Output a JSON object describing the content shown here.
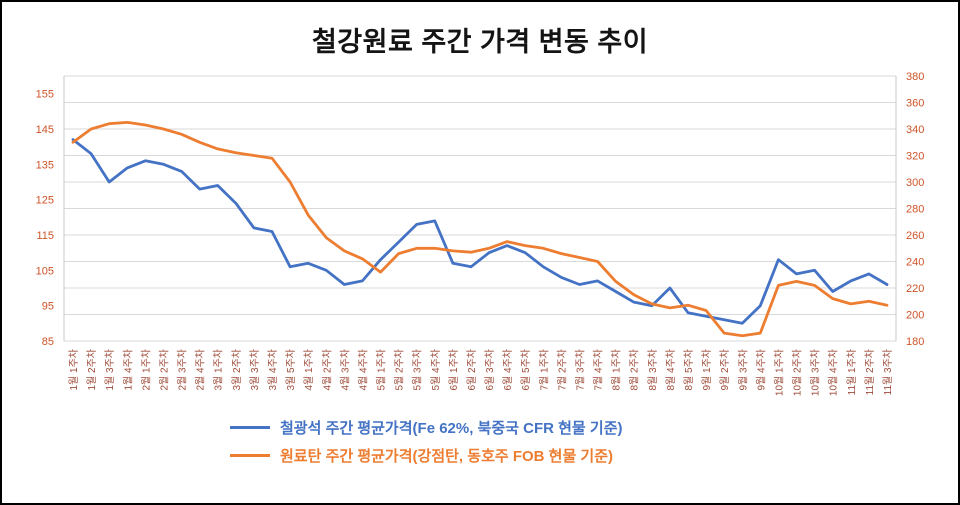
{
  "chart_data": {
    "type": "line",
    "title": "철강원료 주간 가격 변동 추이",
    "categories": [
      "1월 1주차",
      "1월 2주차",
      "1월 3주차",
      "1월 4주차",
      "2월 1주차",
      "2월 2주차",
      "2월 3주차",
      "2월 4주차",
      "3월 1주차",
      "3월 2주차",
      "3월 3주차",
      "3월 4주차",
      "3월 5주차",
      "4월 1주차",
      "4월 2주차",
      "4월 3주차",
      "4월 4주차",
      "5월 1주차",
      "5월 2주차",
      "5월 3주차",
      "5월 4주차",
      "6월 1주차",
      "6월 2주차",
      "6월 3주차",
      "6월 4주차",
      "6월 5주차",
      "7월 1주차",
      "7월 2주차",
      "7월 3주차",
      "7월 4주차",
      "8월 1주차",
      "8월 2주차",
      "8월 3주차",
      "8월 4주차",
      "8월 5주차",
      "9월 1주차",
      "9월 2주차",
      "9월 3주차",
      "9월 4주차",
      "10월 1주차",
      "10월 2주차",
      "10월 3주차",
      "10월 4주차",
      "11월 1주차",
      "11월 2주차",
      "11월 3주차"
    ],
    "series": [
      {
        "key": "iron-ore",
        "name": "철광석 주간 평균가격(Fe 62%, 북중국 CFR 현물 기준)",
        "axis": "left",
        "color": "#4472c4",
        "values": [
          142,
          138,
          130,
          134,
          136,
          135,
          133,
          128,
          129,
          124,
          117,
          116,
          106,
          107,
          105,
          101,
          102,
          108,
          113,
          118,
          119,
          107,
          106,
          110,
          112,
          110,
          106,
          103,
          101,
          102,
          99,
          96,
          95,
          100,
          93,
          92,
          91,
          90,
          95,
          108,
          104,
          105,
          99,
          102,
          104,
          101
        ]
      },
      {
        "key": "coking-coal",
        "name": "원료탄 주간 평균가격(강점탄, 동호주 FOB 현물 기준)",
        "axis": "right",
        "color": "#ed7d31",
        "values": [
          330,
          340,
          344,
          345,
          343,
          340,
          336,
          330,
          325,
          322,
          320,
          318,
          300,
          275,
          258,
          248,
          242,
          232,
          246,
          250,
          250,
          248,
          247,
          250,
          255,
          252,
          250,
          246,
          243,
          240,
          225,
          215,
          208,
          205,
          207,
          203,
          186,
          184,
          186,
          222,
          225,
          222,
          212,
          208,
          210,
          207
        ]
      }
    ],
    "left_axis": {
      "min": 85,
      "max": 160,
      "ticks": [
        155,
        145,
        135,
        125,
        115,
        105,
        95,
        85
      ]
    },
    "right_axis": {
      "min": 180,
      "max": 380,
      "ticks": [
        380,
        360,
        340,
        320,
        300,
        280,
        260,
        240,
        220,
        200,
        180
      ]
    },
    "grid": true,
    "legend_position": "bottom",
    "styles": {
      "y_tick_color": "#cf5328",
      "x_tick_color": "#9e4b38",
      "grid_color": "#d9d9d9",
      "axis_edge_color": "#c9c9c9",
      "title_color": "#141414"
    }
  }
}
